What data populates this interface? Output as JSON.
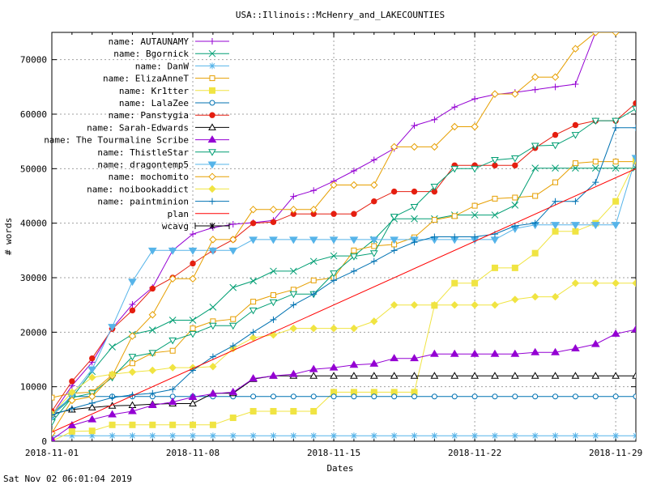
{
  "footer_timestamp": "Sat Nov 02 06:01:04 2019",
  "chart_data": {
    "type": "line",
    "title": "USA::Illinois::McHenry_and_LAKECOUNTIES",
    "xlabel": "Dates",
    "ylabel": "# words",
    "xlim": [
      0,
      29
    ],
    "ylim": [
      0,
      75000
    ],
    "x_start_date": "2018-11-01",
    "x_ticks": [
      {
        "day": 0,
        "label": "2018-11-01"
      },
      {
        "day": 7,
        "label": "2018-11-08"
      },
      {
        "day": 14,
        "label": "2018-11-15"
      },
      {
        "day": 21,
        "label": "2018-11-22"
      },
      {
        "day": 28,
        "label": "2018-11-29"
      }
    ],
    "y_ticks": [
      0,
      10000,
      20000,
      30000,
      40000,
      50000,
      60000,
      70000
    ],
    "grid": true,
    "legend_position": "top-left",
    "series": [
      {
        "name": "name: AUTAUNAMY",
        "color": "#9400d3",
        "marker": "plus",
        "x": [
          0,
          1,
          2,
          3,
          4,
          5,
          6,
          7,
          8,
          9,
          10,
          11,
          12,
          13,
          14,
          15,
          16,
          17,
          18,
          19,
          20,
          21,
          22,
          23,
          24,
          25,
          26,
          27,
          28
        ],
        "values": [
          4800,
          10200,
          14500,
          20700,
          25100,
          28200,
          35000,
          38000,
          39200,
          39800,
          40100,
          40500,
          44900,
          46000,
          47700,
          49600,
          51600,
          53700,
          57900,
          59000,
          61300,
          62800,
          63600,
          64000,
          64500,
          65000,
          65500,
          75000,
          75000
        ]
      },
      {
        "name": "name: Bgornick",
        "color": "#009e73",
        "marker": "x",
        "x": [
          0,
          1,
          2,
          3,
          4,
          5,
          6,
          7,
          8,
          9,
          10,
          11,
          12,
          13,
          14,
          15,
          16,
          17,
          18,
          19,
          20,
          21,
          22,
          23,
          24,
          25,
          26,
          27,
          28,
          29
        ],
        "values": [
          4700,
          8000,
          12800,
          17300,
          19600,
          20400,
          22200,
          22200,
          24600,
          28200,
          29400,
          31200,
          31200,
          33000,
          34000,
          34000,
          37000,
          40800,
          40800,
          40800,
          41500,
          41500,
          41500,
          43300,
          50100,
          50100,
          50100,
          50100,
          50100,
          50100
        ]
      },
      {
        "name": "name: DanW",
        "color": "#56b4e9",
        "marker": "star",
        "x": [
          0,
          1,
          2,
          3,
          4,
          5,
          6,
          7,
          8,
          9,
          10,
          11,
          12,
          13,
          14,
          15,
          16,
          17,
          18,
          19,
          20,
          21,
          22,
          23,
          24,
          25,
          26,
          27,
          28,
          29
        ],
        "values": [
          1000,
          1000,
          1000,
          1000,
          1000,
          1000,
          1000,
          1000,
          1000,
          1000,
          1000,
          1000,
          1000,
          1000,
          1000,
          1000,
          1000,
          1000,
          1000,
          1000,
          1000,
          1000,
          1000,
          1000,
          1000,
          1000,
          1000,
          1000,
          1000,
          1000
        ]
      },
      {
        "name": "name: ElizaAnneT",
        "color": "#e69f00",
        "marker": "square",
        "x": [
          0,
          1,
          2,
          3,
          4,
          5,
          6,
          7,
          8,
          9,
          10,
          11,
          12,
          13,
          14,
          15,
          16,
          17,
          18,
          19,
          20,
          21,
          22,
          23,
          24,
          25,
          26,
          27,
          28,
          29
        ],
        "values": [
          8000,
          8800,
          9000,
          12200,
          14300,
          16200,
          16600,
          20700,
          22000,
          22400,
          25600,
          26800,
          27800,
          29500,
          30000,
          35000,
          35800,
          36100,
          37400,
          40600,
          41300,
          43200,
          44500,
          44700,
          45000,
          47500,
          51000,
          51300,
          51300,
          51300
        ]
      },
      {
        "name": "name: Kr1tter",
        "color": "#f0e442",
        "marker": "filled-square",
        "x": [
          0,
          1,
          2,
          3,
          4,
          5,
          6,
          7,
          8,
          9,
          10,
          11,
          12,
          13,
          14,
          15,
          16,
          17,
          18,
          19,
          20,
          21,
          22,
          23,
          24,
          25,
          26,
          27,
          28,
          29
        ],
        "values": [
          0,
          1800,
          1900,
          3000,
          3000,
          3000,
          3000,
          3000,
          3000,
          4300,
          5500,
          5500,
          5500,
          5500,
          9000,
          9000,
          9000,
          9000,
          9000,
          24900,
          29000,
          29000,
          31800,
          31800,
          34500,
          38500,
          38500,
          40000,
          44000,
          51500
        ]
      },
      {
        "name": "name: LalaZee",
        "color": "#0072b2",
        "marker": "circle",
        "x": [
          0,
          1,
          2,
          3,
          4,
          5,
          6,
          7,
          8,
          9,
          10,
          11,
          12,
          13,
          14,
          15,
          16,
          17,
          18,
          19,
          20,
          21,
          22,
          23,
          24,
          25,
          26,
          27,
          28,
          29
        ],
        "values": [
          5000,
          8200,
          8200,
          8200,
          8200,
          8200,
          8200,
          8200,
          8200,
          8200,
          8200,
          8200,
          8200,
          8200,
          8200,
          8200,
          8200,
          8200,
          8200,
          8200,
          8200,
          8200,
          8200,
          8200,
          8200,
          8200,
          8200,
          8200,
          8200,
          8200
        ]
      },
      {
        "name": "name: Panstygia",
        "color": "#e51e10",
        "marker": "filled-circle",
        "x": [
          0,
          1,
          2,
          3,
          4,
          5,
          6,
          7,
          8,
          9,
          10,
          11,
          12,
          13,
          14,
          15,
          16,
          17,
          18,
          19,
          20,
          21,
          22,
          23,
          24,
          25,
          26,
          27,
          28,
          29
        ],
        "values": [
          5500,
          11000,
          15200,
          20600,
          24000,
          28000,
          30000,
          32600,
          35000,
          37000,
          40000,
          40200,
          41700,
          41700,
          41700,
          41700,
          44000,
          45800,
          45800,
          45800,
          50600,
          50600,
          50600,
          50600,
          53800,
          56200,
          58000,
          58800,
          58800,
          62000
        ]
      },
      {
        "name": "name: Sarah-Edwards",
        "color": "#000000",
        "marker": "triangle",
        "x": [
          0,
          1,
          2,
          3,
          4,
          5,
          6,
          7,
          8,
          9,
          10,
          11,
          12,
          13,
          14,
          15,
          16,
          17,
          18,
          19,
          20,
          21,
          22,
          23,
          24,
          25,
          26,
          27,
          28,
          29
        ],
        "values": [
          5000,
          5800,
          6200,
          6500,
          6600,
          6800,
          6900,
          6900,
          8800,
          8800,
          11400,
          12000,
          12000,
          12000,
          12000,
          12000,
          12000,
          12000,
          12000,
          12000,
          12000,
          12000,
          12000,
          12000,
          12000,
          12000,
          12000,
          12000,
          12000,
          12000
        ]
      },
      {
        "name": "name: The Tourmaline Scribe",
        "color": "#9400d3",
        "marker": "filled-triangle",
        "x": [
          0,
          1,
          2,
          3,
          4,
          5,
          6,
          7,
          8,
          9,
          10,
          11,
          12,
          13,
          14,
          15,
          16,
          17,
          18,
          19,
          20,
          21,
          22,
          23,
          24,
          25,
          26,
          27,
          28,
          29
        ],
        "values": [
          300,
          2900,
          4000,
          4900,
          5500,
          6600,
          7200,
          8100,
          8700,
          9000,
          11500,
          12000,
          12300,
          13200,
          13500,
          14000,
          14200,
          15200,
          15200,
          16000,
          16000,
          16000,
          16000,
          16000,
          16300,
          16300,
          17000,
          17800,
          19700,
          20500
        ]
      },
      {
        "name": "name: ThistleStar",
        "color": "#009e73",
        "marker": "triangle-down",
        "x": [
          0,
          1,
          2,
          3,
          4,
          5,
          6,
          7,
          8,
          9,
          10,
          11,
          12,
          13,
          14,
          15,
          16,
          17,
          18,
          19,
          20,
          21,
          22,
          23,
          24,
          25,
          26,
          27,
          28,
          29
        ],
        "values": [
          3500,
          8000,
          8800,
          11700,
          15500,
          16200,
          18500,
          19700,
          21200,
          21200,
          24000,
          25500,
          27000,
          27000,
          30800,
          33900,
          34500,
          41200,
          43000,
          46700,
          50000,
          50000,
          51600,
          51900,
          54200,
          54300,
          56200,
          58800,
          58800,
          61000
        ]
      },
      {
        "name": "name: dragontemp5",
        "color": "#56b4e9",
        "marker": "filled-triangle-down",
        "x": [
          0,
          1,
          2,
          3,
          4,
          5,
          6,
          7,
          8,
          9,
          10,
          11,
          12,
          13,
          14,
          15,
          16,
          17,
          18,
          19,
          20,
          21,
          22,
          23,
          24,
          25,
          26,
          27,
          28,
          29
        ],
        "values": [
          4500,
          8500,
          13200,
          21000,
          29300,
          35000,
          35000,
          35000,
          35000,
          35000,
          37000,
          37000,
          37000,
          37000,
          37000,
          37000,
          37000,
          37000,
          37000,
          37000,
          37000,
          37000,
          37000,
          39000,
          39700,
          39700,
          39700,
          39700,
          39700,
          52000
        ]
      },
      {
        "name": "name: mochomito",
        "color": "#e69f00",
        "marker": "diamond",
        "x": [
          0,
          1,
          2,
          3,
          4,
          5,
          6,
          7,
          8,
          9,
          10,
          11,
          12,
          13,
          14,
          15,
          16,
          17,
          18,
          19,
          20,
          21,
          22,
          23,
          24,
          25,
          26,
          27,
          28
        ],
        "values": [
          1500,
          7500,
          8200,
          12000,
          19300,
          23200,
          29800,
          29800,
          37000,
          37000,
          42500,
          42500,
          42500,
          42500,
          47000,
          47000,
          47000,
          54000,
          54000,
          54000,
          57700,
          57700,
          63700,
          63700,
          66800,
          66800,
          72000,
          75000,
          75000
        ]
      },
      {
        "name": "name: noibookaddict",
        "color": "#f0e442",
        "marker": "filled-diamond",
        "x": [
          0,
          1,
          2,
          3,
          4,
          5,
          6,
          7,
          8,
          9,
          10,
          11,
          12,
          13,
          14,
          15,
          16,
          17,
          18,
          19,
          20,
          21,
          22,
          23,
          24,
          25,
          26,
          27,
          28,
          29
        ],
        "values": [
          5000,
          9000,
          11700,
          12300,
          12700,
          13000,
          13500,
          13500,
          13700,
          17000,
          19000,
          19500,
          20700,
          20700,
          20700,
          20700,
          22000,
          25000,
          25000,
          25000,
          25000,
          25000,
          25000,
          26000,
          26500,
          26500,
          29000,
          29000,
          29000,
          29000
        ]
      },
      {
        "name": "name: paintminion",
        "color": "#0072b2",
        "marker": "plus",
        "x": [
          0,
          1,
          2,
          3,
          4,
          5,
          6,
          7,
          8,
          9,
          10,
          11,
          12,
          13,
          14,
          15,
          16,
          17,
          18,
          19,
          20,
          21,
          22,
          23,
          24,
          25,
          26,
          27,
          28,
          29
        ],
        "values": [
          4800,
          6000,
          7000,
          8000,
          8500,
          8800,
          9500,
          13000,
          15500,
          17500,
          20000,
          22300,
          25000,
          27000,
          29500,
          31200,
          33000,
          35000,
          36500,
          37500,
          37500,
          37500,
          38000,
          39500,
          40000,
          44000,
          44000,
          47500,
          57500,
          57500
        ]
      },
      {
        "name": "plan",
        "color": "#ff0000",
        "marker": "none",
        "x": [
          0,
          29
        ],
        "values": [
          1667,
          50000
        ]
      },
      {
        "name": "wcavg",
        "color": "#000000",
        "marker": "star-errorbar",
        "x": [],
        "values": []
      }
    ]
  }
}
